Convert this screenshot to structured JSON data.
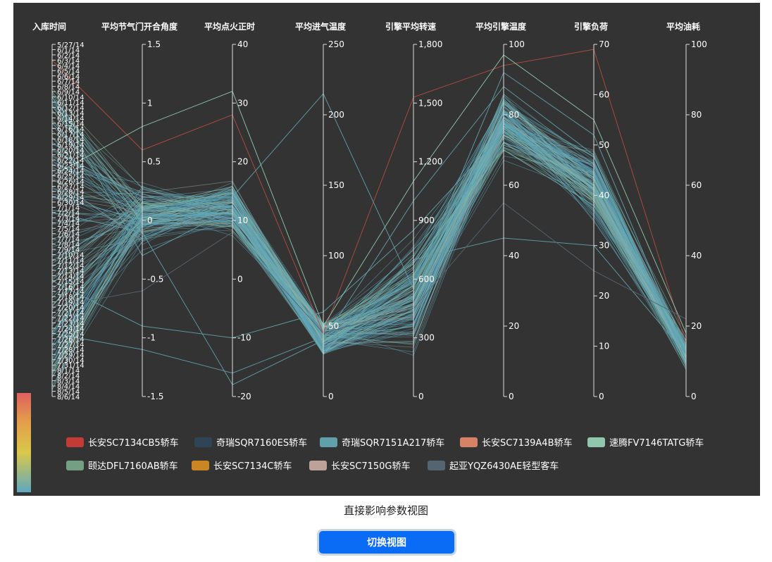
{
  "caption": "直接影响参数视图",
  "switch_button": "切换视图",
  "chart_data": {
    "type": "parallel_coordinates",
    "dimensions": [
      {
        "name": "入库时间",
        "kind": "category",
        "tick_labels": [
          "5/27/14",
          "6/1/14",
          "6/2/14",
          "6/3/14",
          "6/4/14",
          "6/5/14",
          "6/6/14",
          "6/7/14",
          "6/8/14",
          "6/9/14",
          "6/10/14",
          "6/11/14",
          "6/12/14",
          "6/13/14",
          "6/14/14",
          "6/15/14",
          "6/16/14",
          "6/17/14",
          "6/18/14",
          "6/19/14",
          "6/20/14",
          "6/21/14",
          "6/22/14",
          "6/23/14",
          "6/24/14",
          "6/25/14",
          "6/26/14",
          "6/27/14",
          "6/28/14",
          "6/29/14",
          "6/30/14",
          "7/1/14",
          "7/2/14",
          "7/3/14",
          "7/4/14",
          "7/5/14",
          "7/6/14",
          "7/7/14",
          "7/8/14",
          "7/9/14",
          "7/10/14",
          "7/11/14",
          "7/12/14",
          "7/13/14",
          "7/14/14",
          "7/15/14",
          "7/16/14",
          "7/17/14",
          "7/18/14",
          "7/19/14",
          "7/20/14",
          "7/21/14",
          "7/22/14",
          "7/23/14",
          "7/24/14",
          "7/25/14",
          "7/26/14",
          "7/27/14",
          "7/28/14",
          "7/29/14",
          "7/30/14",
          "7/31/14",
          "8/1/14",
          "8/2/14",
          "8/3/14",
          "8/4/14",
          "8/5/14",
          "8/6/14"
        ]
      },
      {
        "name": "平均节气门开合角度",
        "kind": "numeric",
        "min": -1.5,
        "max": 1.5,
        "tick_labels": [
          "-1.5",
          "-1",
          "-0.5",
          "0",
          "0.5",
          "1",
          "1.5"
        ]
      },
      {
        "name": "平均点火正时",
        "kind": "numeric",
        "min": -20,
        "max": 40,
        "tick_labels": [
          "-20",
          "-10",
          "0",
          "10",
          "20",
          "30",
          "40"
        ]
      },
      {
        "name": "平均进气温度",
        "kind": "numeric",
        "min": 0,
        "max": 250,
        "tick_labels": [
          "0",
          "50",
          "100",
          "150",
          "200",
          "250"
        ]
      },
      {
        "name": "引擎平均转速",
        "kind": "numeric",
        "min": 0,
        "max": 1800,
        "tick_labels": [
          "0",
          "300",
          "600",
          "900",
          "1,200",
          "1,500",
          "1,800"
        ]
      },
      {
        "name": "平均引擎温度",
        "kind": "numeric",
        "min": 0,
        "max": 100,
        "tick_labels": [
          "0",
          "20",
          "40",
          "60",
          "80",
          "100"
        ]
      },
      {
        "name": "引擎负荷",
        "kind": "numeric",
        "min": 0,
        "max": 70,
        "tick_labels": [
          "0",
          "10",
          "20",
          "30",
          "40",
          "50",
          "60",
          "70"
        ]
      },
      {
        "name": "平均油耗",
        "kind": "numeric",
        "min": 0,
        "max": 100,
        "tick_labels": [
          "0",
          "20",
          "40",
          "60",
          "80",
          "100"
        ]
      }
    ],
    "lines": [
      {
        "series": "长安SC7134CB5轿车",
        "values": [
          3,
          0.6,
          28,
          45,
          1530,
          94,
          69,
          15
        ]
      },
      {
        "series": "奇瑞SQR7151A217轿车",
        "values": [
          20,
          0.2,
          14,
          215,
          550,
          92,
          52,
          12
        ]
      },
      {
        "series": "奇瑞SQR7151A217轿车",
        "values": [
          32,
          -0.1,
          -18,
          40,
          1000,
          88,
          48,
          10
        ]
      },
      {
        "series": "奇瑞SQR7151A217轿车",
        "values": [
          45,
          -0.9,
          -10,
          60,
          850,
          75,
          44,
          14
        ]
      },
      {
        "series": "奇瑞SQR7151A217轿车",
        "values": [
          55,
          -1.1,
          -16,
          42,
          750,
          70,
          38,
          16
        ]
      },
      {
        "series": "奇瑞SQR7151A217轿车",
        "values": [
          10,
          -0.3,
          12,
          36,
          700,
          45,
          30,
          12
        ]
      },
      {
        "series": "速腾FV7146TATG轿车",
        "values": [
          25,
          0.8,
          32,
          50,
          1100,
          97,
          55,
          18
        ]
      },
      {
        "series": "起亚YQZ6430AE轻型客车",
        "values": [
          50,
          -0.6,
          8,
          45,
          450,
          55,
          25,
          22
        ]
      }
    ],
    "color_scale": [
      "#5fa8c0",
      "#d9c84a",
      "#e3a04a",
      "#e06060"
    ],
    "legend": [
      {
        "name": "长安SC7134CB5轿车",
        "color": "#c33a36"
      },
      {
        "name": "奇瑞SQR7160ES轿车",
        "color": "#2f4556"
      },
      {
        "name": "奇瑞SQR7151A217轿车",
        "color": "#60a0aa"
      },
      {
        "name": "长安SC7139A4B轿车",
        "color": "#d78266"
      },
      {
        "name": "速腾FV7146TATG轿车",
        "color": "#90c8ad"
      },
      {
        "name": "颐达DFL7160AB轿车",
        "color": "#749f83"
      },
      {
        "name": "长安SC7134C轿车",
        "color": "#ca8622"
      },
      {
        "name": "长安SC7150G轿车",
        "color": "#bda29a"
      },
      {
        "name": "起亚YQZ6430AE轻型客车",
        "color": "#546570"
      }
    ]
  }
}
